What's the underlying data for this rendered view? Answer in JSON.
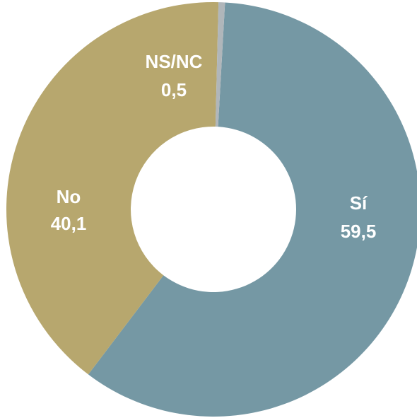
{
  "chart_data": {
    "type": "pie",
    "donut": true,
    "title": "",
    "slices": [
      {
        "label": "Sí",
        "value": 59.5,
        "value_label": "59,5",
        "color": "#7598a4"
      },
      {
        "label": "No",
        "value": 40.1,
        "value_label": "40,1",
        "color": "#b7a76e"
      },
      {
        "label": "NS/NC",
        "value": 0.5,
        "value_label": "0,5",
        "color": "#b0b6ba"
      }
    ],
    "start": "top, just right of 12 o'clock",
    "direction": "clockwise",
    "legend": "none",
    "label_color": "#ffffff"
  }
}
